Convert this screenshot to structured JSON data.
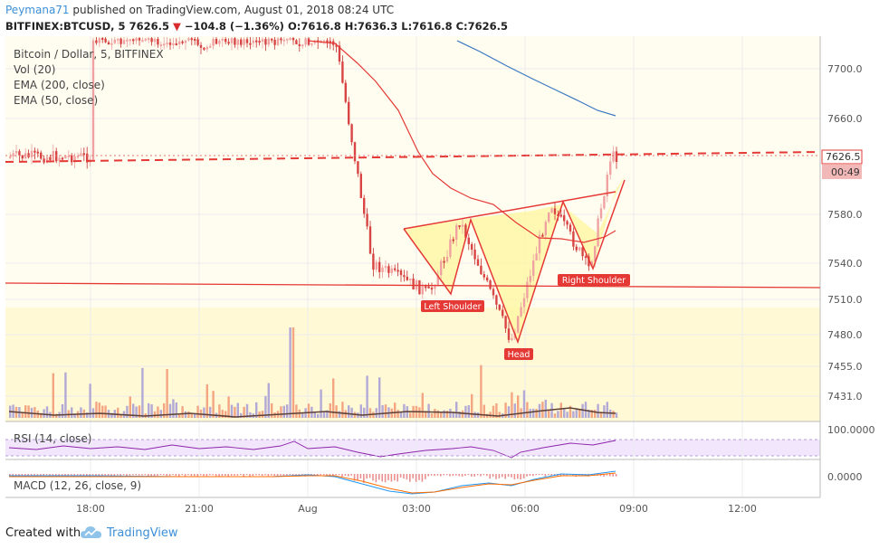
{
  "header": {
    "author": "Peymana71",
    "published_text": "published on TradingView.com, August 01, 2018 08:24 UTC",
    "symbol": "BITFINEX:BTCUSD, 5",
    "last": "7626.5",
    "change": "−104.8 (−1.36%)",
    "ohlc": "O:7616.8 H:7636.3 L:7616.8 C:7626.5"
  },
  "legend": {
    "title": "Bitcoin / Dollar, 5, BITFINEX",
    "vol": "Vol (20)",
    "ema200": "EMA (200, close)",
    "ema50": "EMA (50, close)"
  },
  "rsi": {
    "label": "RSI (14, close)",
    "scale_label": "100.0000"
  },
  "macd": {
    "label": "MACD (12, 26, close, 9)",
    "scale_label": "0.0000"
  },
  "footer": {
    "created_with": "Created with",
    "brand": "TradingView"
  },
  "price_tag": {
    "value": "7626.5",
    "countdown": "00:49"
  },
  "colors": {
    "up": "#f0a2a2",
    "down": "#d94444",
    "ema200": "#3a78c2",
    "ema50": "#e53935",
    "pattern_fill": "#fff59d",
    "label_bg": "#e53935"
  },
  "chart_data": {
    "type": "candlestick",
    "x_ticks": [
      "18:00",
      "21:00",
      "Aug",
      "03:00",
      "06:00",
      "09:00",
      "12:00"
    ],
    "y_ticks": [
      7700,
      7660,
      7580,
      7540,
      7510,
      7480,
      7455,
      7431
    ],
    "annotations": [
      "Left Shoulder",
      "Head",
      "Right Shoulder"
    ],
    "pattern": "inverse head and shoulders",
    "current_price": 7626.5,
    "approx_points": [
      {
        "t": "~00:45",
        "price": 7720
      },
      {
        "t": "~01:45",
        "price": 7540
      },
      {
        "t": "~03:20",
        "price": 7515
      },
      {
        "t": "~04:10",
        "price": 7575
      },
      {
        "t": "~05:35",
        "price": 7475
      },
      {
        "t": "~06:40",
        "price": 7590
      },
      {
        "t": "~07:45",
        "price": 7535
      },
      {
        "t": "~08:20",
        "price": 7626.5
      }
    ]
  }
}
